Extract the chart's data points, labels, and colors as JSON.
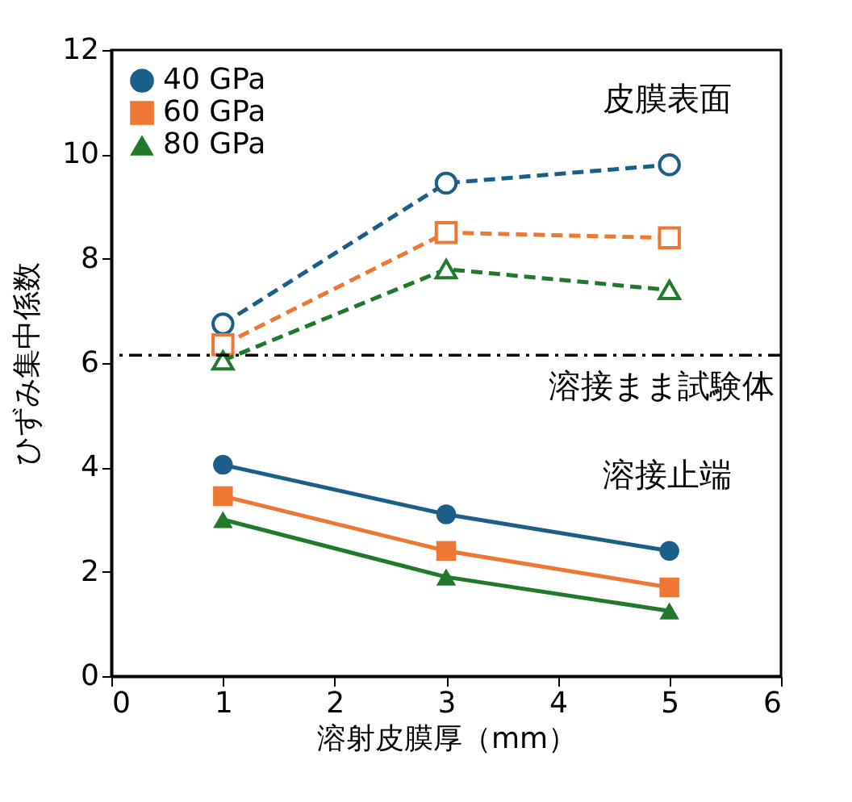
{
  "chart_data": {
    "type": "line",
    "xlabel": "溶射皮膜厚（mm）",
    "ylabel": "ひずみ集中係数",
    "x": [
      1,
      3,
      5
    ],
    "xlim": [
      0,
      6
    ],
    "xticks": [
      0,
      1,
      2,
      3,
      4,
      5,
      6
    ],
    "ylim": [
      0,
      12
    ],
    "yticks": [
      0,
      2,
      4,
      6,
      8,
      10,
      12
    ],
    "legend": "top left",
    "series": [
      {
        "name": "40 GPa",
        "color": "#1b5e8a",
        "marker": "circle",
        "line_style": "solid",
        "values": [
          4.05,
          3.1,
          2.4
        ]
      },
      {
        "name": "60 GPa",
        "color": "#ee7733",
        "marker": "square",
        "line_style": "solid",
        "values": [
          3.45,
          2.4,
          1.7
        ]
      },
      {
        "name": "80 GPa",
        "color": "#217a2b",
        "marker": "triangle",
        "line_style": "solid",
        "values": [
          3.0,
          1.9,
          1.25
        ]
      },
      {
        "color": "#1b5e8a",
        "marker": "circle",
        "line_style": "dashed",
        "values": [
          6.75,
          9.45,
          9.8
        ]
      },
      {
        "color": "#ee7733",
        "marker": "square",
        "line_style": "dashed",
        "values": [
          6.35,
          8.5,
          8.4
        ]
      },
      {
        "color": "#217a2b",
        "marker": "triangle",
        "line_style": "dashed",
        "values": [
          6.05,
          7.8,
          7.4
        ]
      }
    ],
    "ref_lines": [
      {
        "axis": "y",
        "value": 6.15,
        "label": "溶接まま試験体",
        "line_style": "dashdot"
      }
    ],
    "annotations": [
      "皮膜表面",
      "溶接止端"
    ]
  }
}
